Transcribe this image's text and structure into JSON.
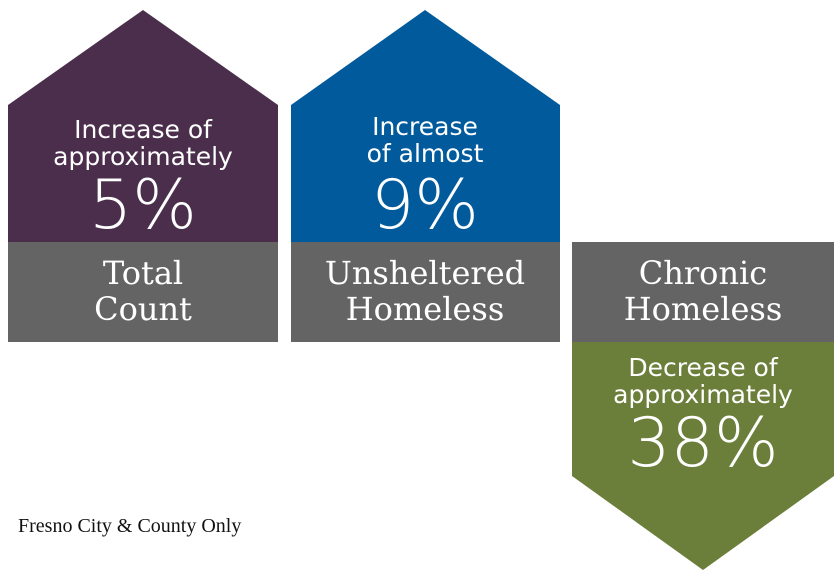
{
  "cards": [
    {
      "description": [
        "Increase of",
        "approximately"
      ],
      "value": "5%",
      "label": [
        "Total",
        "Count"
      ]
    },
    {
      "description": [
        "Increase",
        "of almost"
      ],
      "value": "9%",
      "label": [
        "Unsheltered",
        "Homeless"
      ]
    },
    {
      "description": [
        "Decrease of",
        "approximately"
      ],
      "value": "38%",
      "label": [
        "Chronic",
        "Homeless"
      ]
    }
  ],
  "footnote": "Fresno City & County Only"
}
